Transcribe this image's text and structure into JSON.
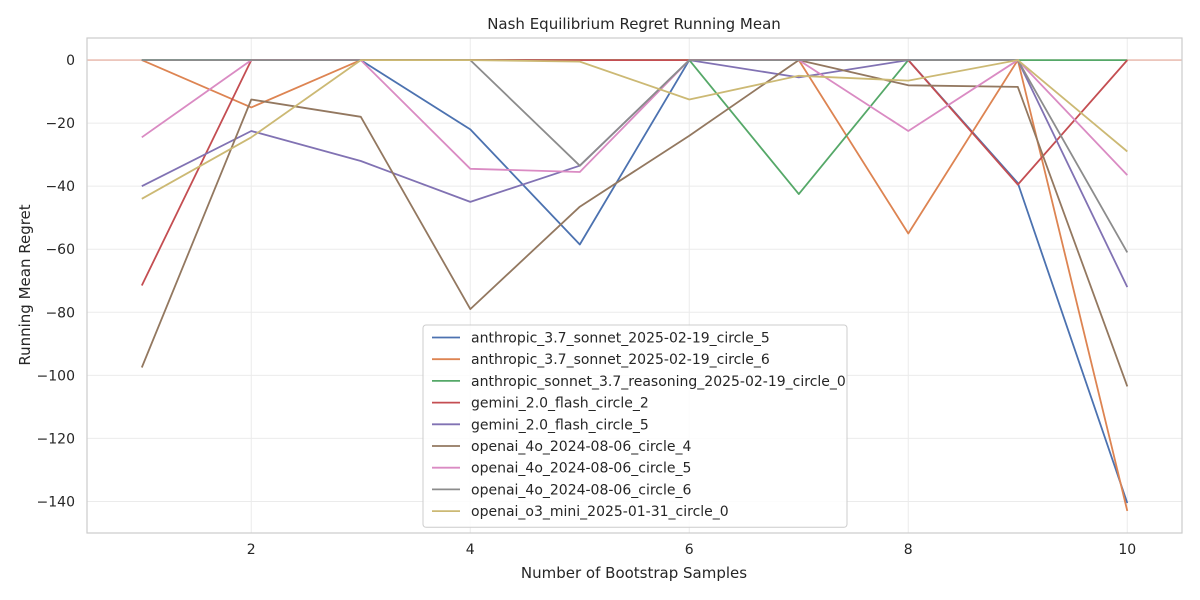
{
  "chart_data": {
    "type": "line",
    "title": "Nash Equilibrium Regret Running Mean",
    "xlabel": "Number of Bootstrap Samples",
    "ylabel": "Running Mean Regret",
    "x": [
      1,
      2,
      3,
      4,
      5,
      6,
      7,
      8,
      9,
      10
    ],
    "xlim": [
      0.5,
      10.5
    ],
    "ylim": [
      -150,
      7
    ],
    "xticks": [
      2,
      4,
      6,
      8,
      10
    ],
    "yticks": [
      0,
      -20,
      -40,
      -60,
      -80,
      -100,
      -120,
      -140
    ],
    "grid": true,
    "legend_position": "lower-center",
    "reference_line": {
      "y": 0,
      "color": "#e8b4a8"
    },
    "series": [
      {
        "name": "anthropic_3.7_sonnet_2025-02-19_circle_5",
        "color": "#4c72b0",
        "values": [
          0,
          0,
          0,
          -22,
          -58.5,
          0,
          0,
          0,
          -39,
          -140.5
        ]
      },
      {
        "name": "anthropic_3.7_sonnet_2025-02-19_circle_6",
        "color": "#dd8452",
        "values": [
          0,
          -15,
          0,
          0,
          0,
          0,
          0,
          -55,
          0,
          -143
        ]
      },
      {
        "name": "anthropic_sonnet_3.7_reasoning_2025-02-19_circle_0",
        "color": "#55a868",
        "values": [
          0,
          0,
          0,
          0,
          0,
          0,
          -42.5,
          0,
          0,
          0
        ]
      },
      {
        "name": "gemini_2.0_flash_circle_2",
        "color": "#c44e52",
        "values": [
          -71.5,
          0,
          0,
          0,
          0,
          0,
          0,
          0,
          -39.5,
          0
        ]
      },
      {
        "name": "gemini_2.0_flash_circle_5",
        "color": "#8172b3",
        "values": [
          -40,
          -22.5,
          -32,
          -45,
          -33.5,
          0,
          -5.5,
          0,
          0,
          -72
        ]
      },
      {
        "name": "openai_4o_2024-08-06_circle_4",
        "color": "#937860",
        "values": [
          -97.5,
          -12.5,
          -18,
          -79,
          -46.5,
          -24,
          0,
          -8,
          -8.5,
          -103.5
        ]
      },
      {
        "name": "openai_4o_2024-08-06_circle_5",
        "color": "#da8bc3",
        "values": [
          -24.5,
          0,
          0,
          -34.5,
          -35.5,
          0,
          0,
          -22.5,
          0,
          -36.5
        ]
      },
      {
        "name": "openai_4o_2024-08-06_circle_6",
        "color": "#8c8c8c",
        "values": [
          0,
          0,
          0,
          0,
          -33.5,
          0,
          0,
          0,
          0,
          -61
        ]
      },
      {
        "name": "openai_o3_mini_2025-01-31_circle_0",
        "color": "#ccb974",
        "values": [
          -44,
          -24.5,
          0,
          0,
          -0.5,
          -12.5,
          -5,
          -6.5,
          0,
          -29
        ]
      }
    ]
  }
}
